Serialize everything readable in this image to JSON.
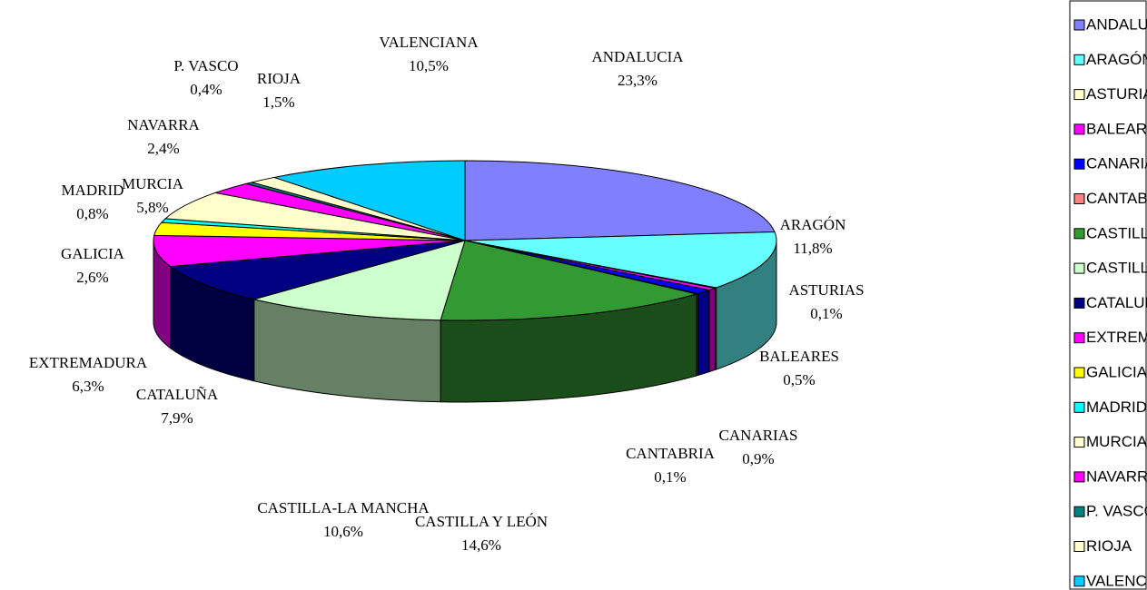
{
  "chart_data": {
    "type": "pie3d",
    "categories": [
      "ANDALUCIA",
      "ARAGÓN",
      "ASTURIAS",
      "BALEARES",
      "CANARIAS",
      "CANTABRIA",
      "CASTILLA Y LEÓN",
      "CASTILLA-LA MANCHA",
      "CATALUÑA",
      "EXTREMADURA",
      "GALICIA",
      "MADRID",
      "MURCIA",
      "NAVARRA",
      "P. VASCO",
      "RIOJA",
      "VALENCIANA"
    ],
    "values": [
      23.3,
      11.8,
      0.1,
      0.5,
      0.9,
      0.1,
      14.6,
      10.6,
      7.9,
      6.3,
      2.6,
      0.8,
      5.8,
      2.4,
      0.4,
      1.5,
      10.5
    ],
    "value_labels": [
      "23,3%",
      "11,8%",
      "0,1%",
      "0,5%",
      "0,9%",
      "0,1%",
      "14,6%",
      "10,6%",
      "7,9%",
      "6,3%",
      "2,6%",
      "0,8%",
      "5,8%",
      "2,4%",
      "0,4%",
      "1,5%",
      "10,5%"
    ],
    "colors": [
      "#8080ff",
      "#66ffff",
      "#ffffcc",
      "#ff00ff",
      "#0000ff",
      "#ff8080",
      "#339933",
      "#ccffcc",
      "#000080",
      "#ff00ff",
      "#ffff00",
      "#00ffff",
      "#ffffcc",
      "#ff00ff",
      "#008080",
      "#ffffcc",
      "#00ccff"
    ],
    "legend": "right"
  }
}
